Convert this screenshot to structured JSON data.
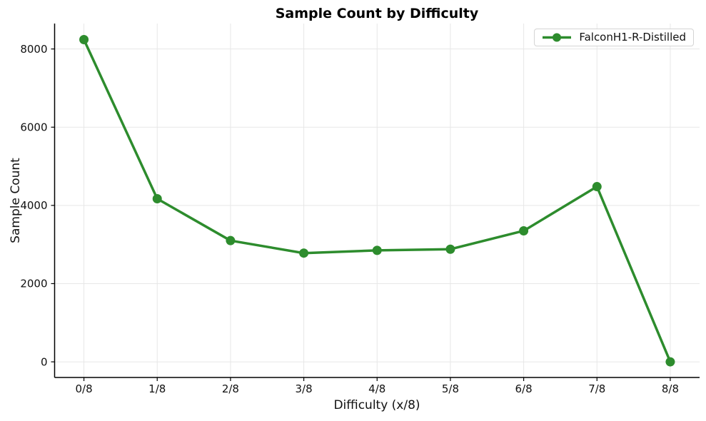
{
  "chart_data": {
    "type": "line",
    "title": "Sample Count by Difficulty",
    "xlabel": "Difficulty (x/8)",
    "ylabel": "Sample Count",
    "categories": [
      "0/8",
      "1/8",
      "2/8",
      "3/8",
      "4/8",
      "5/8",
      "6/8",
      "7/8",
      "8/8"
    ],
    "series": [
      {
        "name": "FalconH1-R-Distilled",
        "color": "#2d8c2d",
        "marker": "circle",
        "values": [
          8240,
          4170,
          3100,
          2780,
          2850,
          2880,
          3350,
          4480,
          0
        ]
      }
    ],
    "y_ticks": [
      0,
      2000,
      4000,
      6000,
      8000
    ],
    "ylim": [
      -400,
      8650
    ],
    "xlim_padding": 0.4,
    "grid": true,
    "grid_color": "#e7e7e7",
    "axis_color": "#000000",
    "text_color": "#111111",
    "legend_position": "upper right",
    "background": "#ffffff"
  }
}
